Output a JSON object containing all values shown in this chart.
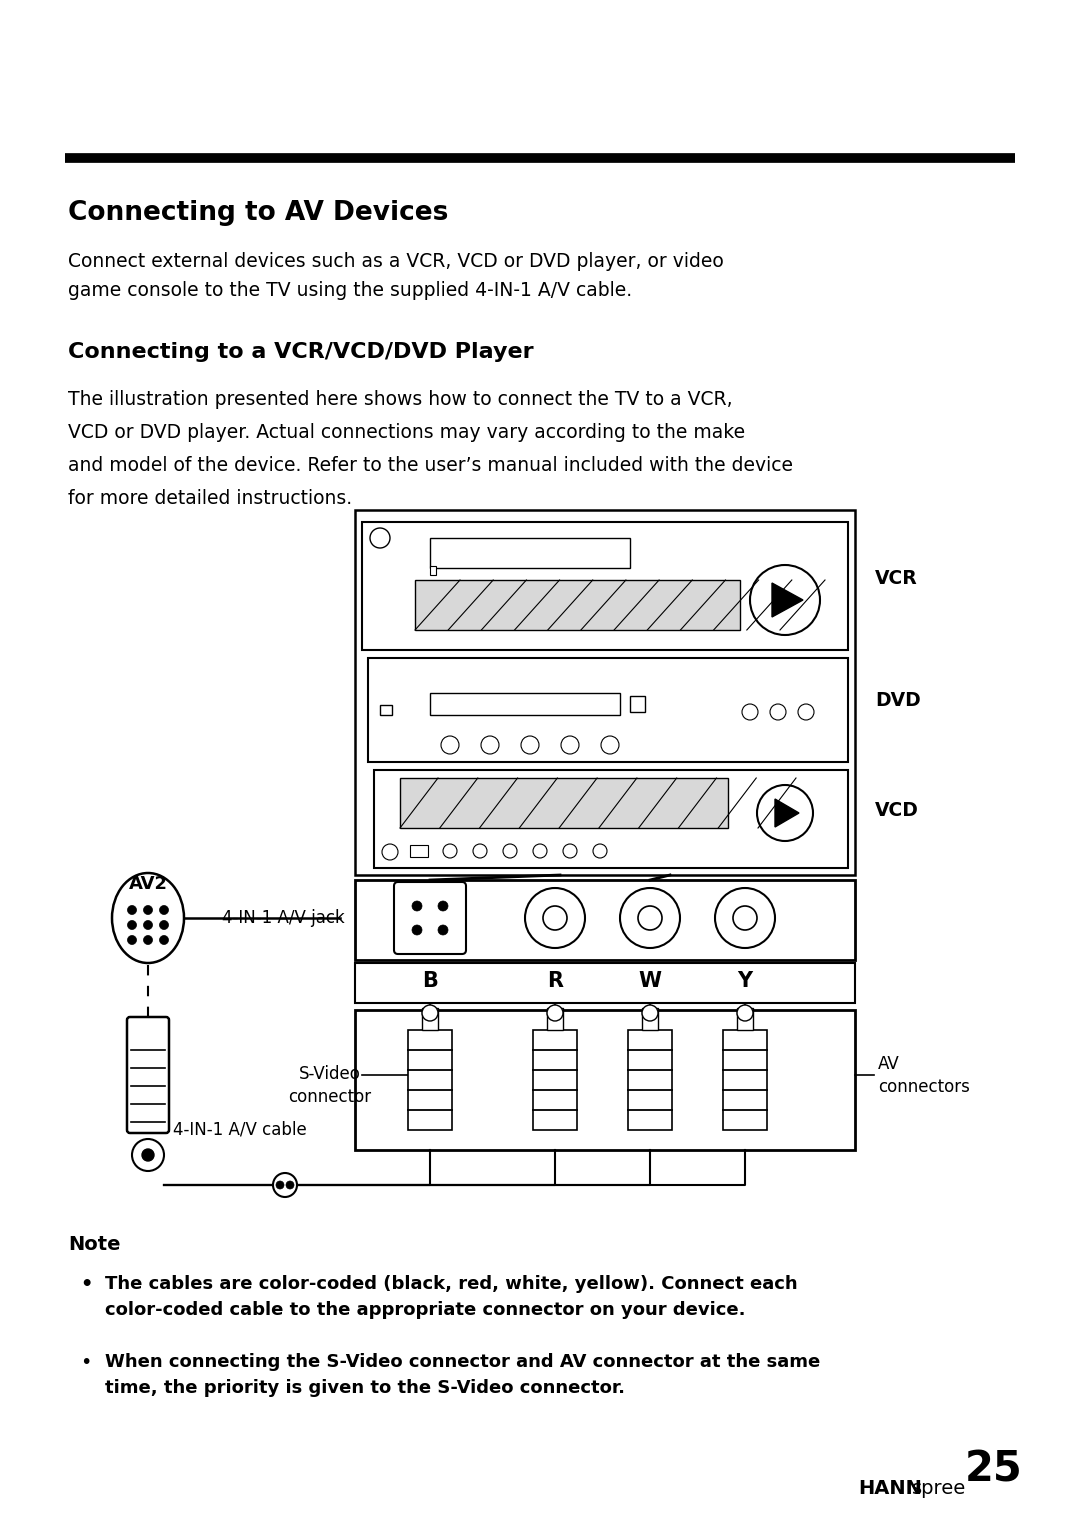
{
  "bg_color": "#ffffff",
  "title1": "Connecting to AV Devices",
  "para1": "Connect external devices such as a VCR, VCD or DVD player, or video\ngame console to the TV using the supplied 4-IN-1 A/V cable.",
  "title2": "Connecting to a VCR/VCD/DVD Player",
  "para2_line1": "The illustration presented here shows how to connect the TV to a VCR,",
  "para2_line2": "VCD or DVD player. Actual connections may vary according to the make",
  "para2_line3": "and model of the device. Refer to the user’s manual included with the device",
  "para2_line4": "for more detailed instructions.",
  "label_vcr": "VCR",
  "label_dvd": "DVD",
  "label_vcd": "VCD",
  "label_av2": "AV2",
  "label_4in1_jack": "4-IN-1 A/V jack",
  "label_svideo_1": "S-Video",
  "label_svideo_2": "connector",
  "label_av_conn_1": "AV",
  "label_av_conn_2": "connectors",
  "label_4in1_cable": "4-IN-1 A/V cable",
  "label_b": "B",
  "label_r": "R",
  "label_w": "W",
  "label_y": "Y",
  "note_title": "Note",
  "note1_bold": "The cables are color-coded (black, red, white, yellow). Connect each\ncolor-coded cable to the appropriate connector on your device.",
  "note2_bold": "When connecting the S-Video connector and AV connector at the same\ntime, the priority is given to the S-Video connector.",
  "footer_hann": "HANN",
  "footer_spree": "spree",
  "footer_page": "25",
  "text_color": "#000000"
}
